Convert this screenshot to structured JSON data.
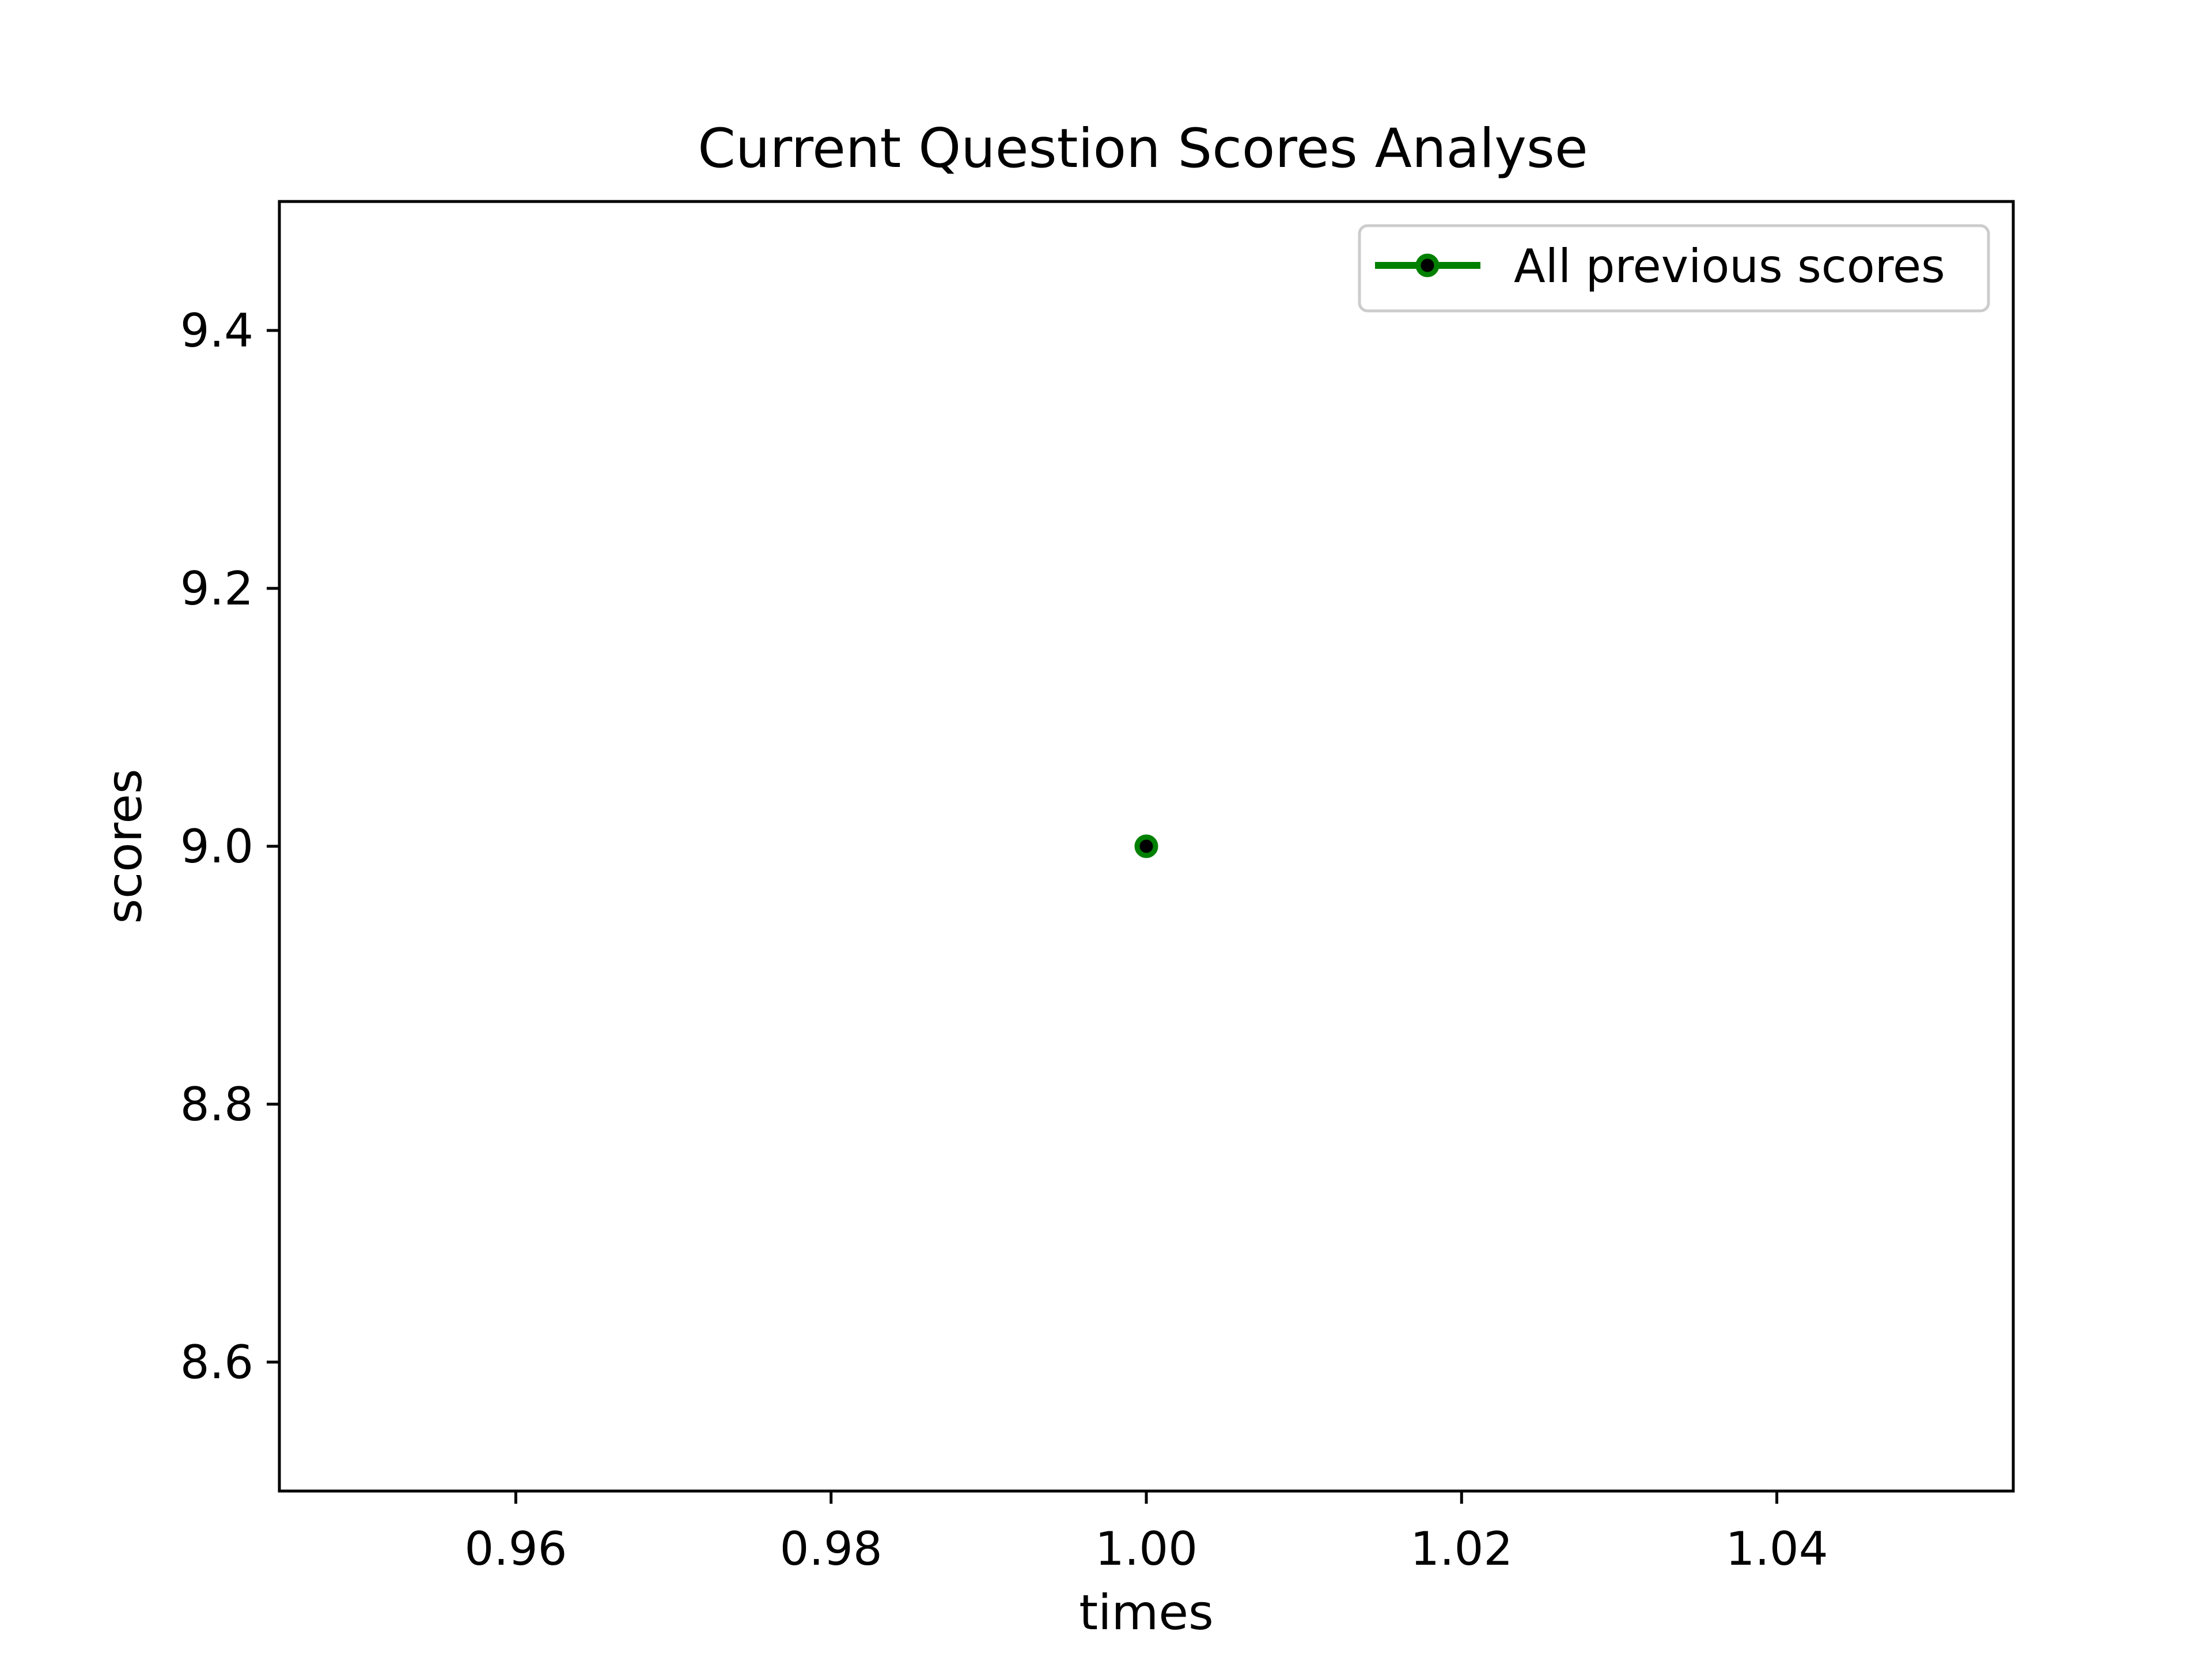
{
  "chart_data": {
    "type": "line",
    "title": "Current Question Scores Analyse",
    "xlabel": "times",
    "ylabel": "scores",
    "xlim": [
      0.945,
      1.055
    ],
    "ylim": [
      8.5,
      9.5
    ],
    "x_ticks": [
      0.96,
      0.98,
      1.0,
      1.02,
      1.04
    ],
    "x_tick_labels": [
      "0.96",
      "0.98",
      "1.00",
      "1.02",
      "1.04"
    ],
    "y_ticks": [
      8.6,
      8.8,
      9.0,
      9.2,
      9.4
    ],
    "y_tick_labels": [
      "8.6",
      "8.8",
      "9.0",
      "9.2",
      "9.4"
    ],
    "grid": false,
    "legend_position": "top-right",
    "series": [
      {
        "name": "All previous scores",
        "x": [
          1.0
        ],
        "y": [
          9.0
        ],
        "line_color": "#008000",
        "marker_edge_color": "#008000",
        "marker_face_color": "#000000"
      }
    ]
  }
}
